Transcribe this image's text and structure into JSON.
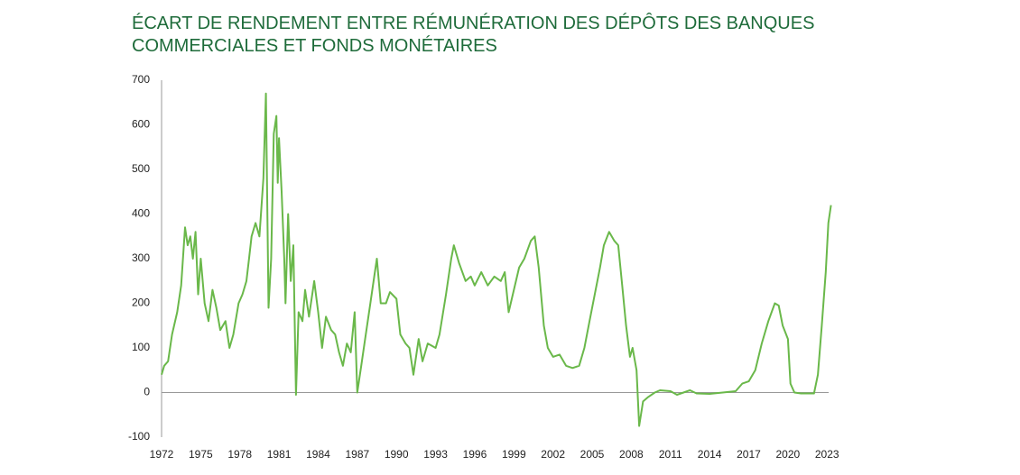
{
  "chart_data": {
    "type": "line",
    "title": "ÉCART DE RENDEMENT ENTRE RÉMUNÉRATION DES DÉPÔTS DES BANQUES COMMERCIALES ET FONDS MONÉTAIRES",
    "color": "#6ab84a",
    "x": [
      1972.0,
      1972.2,
      1972.5,
      1972.8,
      1973.2,
      1973.5,
      1973.8,
      1974.0,
      1974.2,
      1974.4,
      1974.6,
      1974.8,
      1975.0,
      1975.3,
      1975.6,
      1975.9,
      1976.2,
      1976.5,
      1976.9,
      1977.2,
      1977.5,
      1977.9,
      1978.2,
      1978.5,
      1978.7,
      1978.9,
      1979.2,
      1979.5,
      1979.8,
      1980.0,
      1980.2,
      1980.4,
      1980.6,
      1980.8,
      1980.9,
      1981.0,
      1981.2,
      1981.4,
      1981.5,
      1981.7,
      1981.9,
      1982.1,
      1982.3,
      1982.5,
      1982.8,
      1983.0,
      1983.3,
      1983.7,
      1984.0,
      1984.3,
      1984.6,
      1985.0,
      1985.3,
      1985.6,
      1985.9,
      1986.2,
      1986.5,
      1986.8,
      1987.0,
      1987.3,
      1987.6,
      1988.0,
      1988.3,
      1988.5,
      1988.8,
      1989.2,
      1989.5,
      1990.0,
      1990.3,
      1990.7,
      1991.0,
      1991.3,
      1991.7,
      1992.0,
      1992.4,
      1993.0,
      1993.3,
      1993.8,
      1994.2,
      1994.4,
      1994.8,
      1995.3,
      1995.7,
      1996.0,
      1996.5,
      1997.0,
      1997.5,
      1998.0,
      1998.3,
      1998.6,
      1999.0,
      1999.4,
      1999.8,
      2000.3,
      2000.6,
      2000.9,
      2001.3,
      2001.6,
      2002.0,
      2002.5,
      2003.0,
      2003.5,
      2004.0,
      2004.4,
      2004.8,
      2005.2,
      2005.6,
      2005.9,
      2006.3,
      2006.7,
      2007.0,
      2007.3,
      2007.6,
      2007.9,
      2008.1,
      2008.4,
      2008.6,
      2008.9,
      2009.3,
      2009.8,
      2010.2,
      2011.0,
      2011.5,
      2012.0,
      2012.5,
      2013.0,
      2014.0,
      2015.0,
      2016.0,
      2016.5,
      2017.0,
      2017.5,
      2018.0,
      2018.5,
      2019.0,
      2019.3,
      2019.6,
      2020.0,
      2020.2,
      2020.5,
      2021.0,
      2022.0,
      2022.3,
      2022.6,
      2022.9,
      2023.1,
      2023.3
    ],
    "values": [
      40,
      60,
      70,
      130,
      180,
      240,
      370,
      330,
      350,
      300,
      360,
      220,
      300,
      200,
      160,
      230,
      190,
      140,
      160,
      100,
      130,
      200,
      220,
      250,
      300,
      350,
      380,
      350,
      480,
      670,
      190,
      300,
      580,
      620,
      470,
      570,
      450,
      300,
      200,
      400,
      250,
      330,
      -5,
      180,
      160,
      230,
      170,
      250,
      180,
      100,
      170,
      140,
      130,
      90,
      60,
      110,
      90,
      180,
      0,
      60,
      120,
      200,
      260,
      300,
      200,
      200,
      225,
      210,
      130,
      110,
      100,
      40,
      120,
      70,
      110,
      100,
      130,
      220,
      300,
      330,
      290,
      250,
      260,
      240,
      270,
      240,
      260,
      250,
      270,
      180,
      230,
      280,
      300,
      340,
      350,
      280,
      150,
      100,
      80,
      85,
      60,
      55,
      60,
      100,
      160,
      220,
      280,
      330,
      360,
      340,
      330,
      240,
      150,
      80,
      100,
      50,
      -75,
      -20,
      -10,
      0,
      5,
      3,
      -5,
      0,
      5,
      -2,
      -3,
      0,
      3,
      20,
      25,
      50,
      110,
      160,
      200,
      195,
      150,
      120,
      20,
      0,
      -2,
      -2,
      40,
      150,
      270,
      380,
      420
    ],
    "xlim": [
      1972,
      2023.4
    ],
    "xticks": [
      1972,
      1975,
      1978,
      1981,
      1984,
      1987,
      1990,
      1993,
      1996,
      1999,
      2002,
      2005,
      2008,
      2011,
      2014,
      2017,
      2020,
      2023
    ],
    "ylim": [
      -100,
      700
    ],
    "yticks": [
      -100,
      0,
      100,
      200,
      300,
      400,
      500,
      600,
      700
    ]
  }
}
